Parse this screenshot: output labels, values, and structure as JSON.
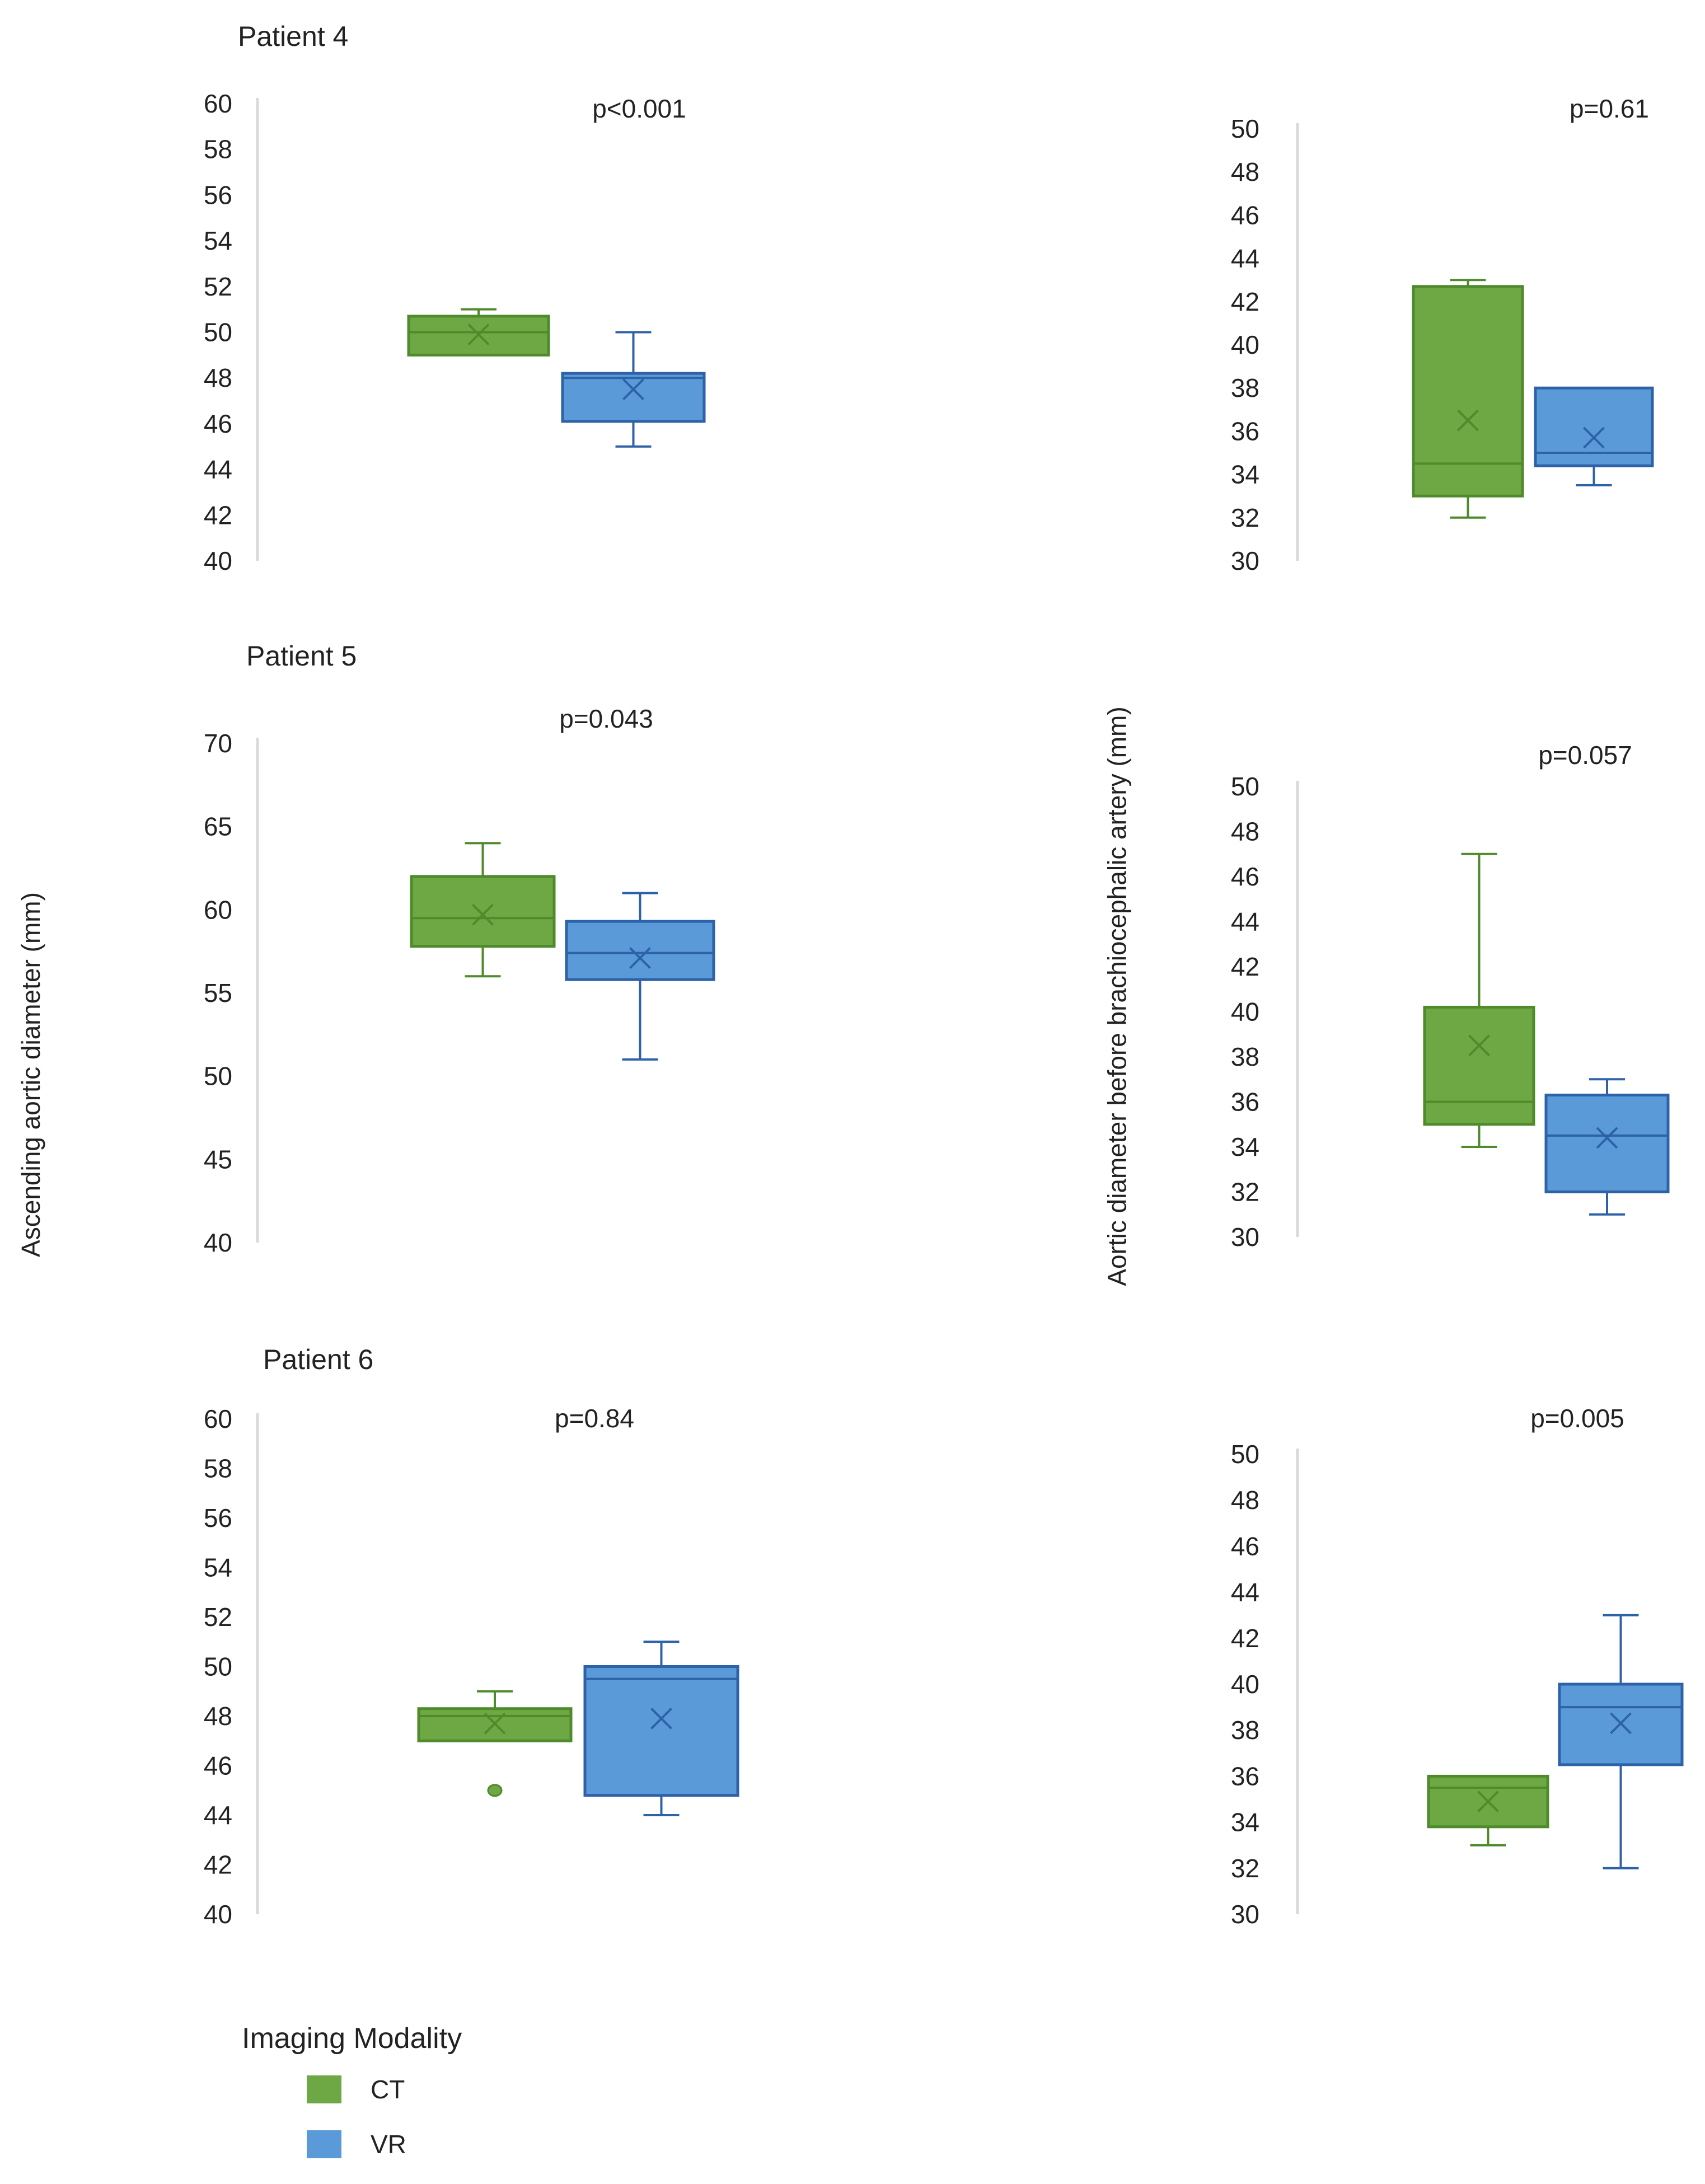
{
  "colors": {
    "ct": "#6ea844",
    "ct_dark": "#4f8a2b",
    "vr": "#5a9ad8",
    "vr_dark": "#2e62a8",
    "axis": "#d9d9d9",
    "text": "#222222"
  },
  "patients": {
    "p4": "Patient 4",
    "p5": "Patient 5",
    "p6": "Patient 6"
  },
  "y_labels": {
    "left": "Ascending aortic diameter (mm)",
    "right": "Aortic diameter before brachiocephalic artery (mm)"
  },
  "legend": {
    "title": "Imaging Modality",
    "items": [
      {
        "label": "CT",
        "color": "#6ea844"
      },
      {
        "label": "VR",
        "color": "#5a9ad8"
      }
    ]
  },
  "chart_data": [
    {
      "type": "box",
      "panel": "patient4-ascending",
      "patient": "Patient 4",
      "ylabel": "Ascending aortic diameter (mm)",
      "annotation": "p<0.001",
      "ylim": [
        40,
        60
      ],
      "yticks": [
        40,
        42,
        44,
        46,
        48,
        50,
        52,
        54,
        56,
        58,
        60
      ],
      "series": [
        {
          "name": "CT",
          "min": 49,
          "q1": 49,
          "median": 50,
          "q3": 50.7,
          "max": 51,
          "mean": 49.9,
          "outliers": []
        },
        {
          "name": "VR",
          "min": 45,
          "q1": 46.1,
          "median": 48,
          "q3": 48.2,
          "max": 50,
          "mean": 47.5,
          "outliers": []
        }
      ]
    },
    {
      "type": "box",
      "panel": "patient4-brachiocephalic",
      "patient": "Patient 4",
      "ylabel": "Aortic diameter before brachiocephalic artery (mm)",
      "annotation": "p=0.61",
      "ylim": [
        30,
        50
      ],
      "yticks": [
        30,
        32,
        34,
        36,
        38,
        40,
        42,
        44,
        46,
        48,
        50
      ],
      "series": [
        {
          "name": "CT",
          "min": 32,
          "q1": 33,
          "median": 34.5,
          "q3": 42.7,
          "max": 43,
          "mean": 36.5,
          "outliers": []
        },
        {
          "name": "VR",
          "min": 33.5,
          "q1": 34.4,
          "median": 35,
          "q3": 38,
          "max": 38,
          "mean": 35.7,
          "outliers": []
        }
      ]
    },
    {
      "type": "box",
      "panel": "patient5-ascending",
      "patient": "Patient 5",
      "ylabel": "Ascending aortic diameter (mm)",
      "annotation": "p=0.043",
      "ylim": [
        40,
        70
      ],
      "yticks": [
        40,
        45,
        50,
        55,
        60,
        65,
        70
      ],
      "series": [
        {
          "name": "CT",
          "min": 56,
          "q1": 57.8,
          "median": 59.5,
          "q3": 62,
          "max": 64,
          "mean": 59.7,
          "outliers": []
        },
        {
          "name": "VR",
          "min": 51,
          "q1": 55.8,
          "median": 57.4,
          "q3": 59.3,
          "max": 61,
          "mean": 57.1,
          "outliers": []
        }
      ]
    },
    {
      "type": "box",
      "panel": "patient5-brachiocephalic",
      "patient": "Patient 5",
      "ylabel": "Aortic diameter before brachiocephalic artery (mm)",
      "annotation": "p=0.057",
      "ylim": [
        30,
        50
      ],
      "yticks": [
        30,
        32,
        34,
        36,
        38,
        40,
        42,
        44,
        46,
        48,
        50
      ],
      "series": [
        {
          "name": "CT",
          "min": 34,
          "q1": 35,
          "median": 36,
          "q3": 40.2,
          "max": 47,
          "mean": 38.5,
          "outliers": []
        },
        {
          "name": "VR",
          "min": 31,
          "q1": 32,
          "median": 34.5,
          "q3": 36.3,
          "max": 37,
          "mean": 34.4,
          "outliers": []
        }
      ]
    },
    {
      "type": "box",
      "panel": "patient6-ascending",
      "patient": "Patient 6",
      "ylabel": "Ascending aortic diameter (mm)",
      "annotation": "p=0.84",
      "ylim": [
        40,
        60
      ],
      "yticks": [
        40,
        42,
        44,
        46,
        48,
        50,
        52,
        54,
        56,
        58,
        60
      ],
      "series": [
        {
          "name": "CT",
          "min": 47,
          "q1": 47,
          "median": 48,
          "q3": 48.3,
          "max": 49,
          "mean": 47.7,
          "outliers": [
            45
          ]
        },
        {
          "name": "VR",
          "min": 44,
          "q1": 44.8,
          "median": 49.5,
          "q3": 50,
          "max": 51,
          "mean": 47.9,
          "outliers": []
        }
      ]
    },
    {
      "type": "box",
      "panel": "patient6-brachiocephalic",
      "patient": "Patient 6",
      "ylabel": "Aortic diameter before brachiocephalic artery (mm)",
      "annotation": "p=0.005",
      "ylim": [
        30,
        50
      ],
      "yticks": [
        30,
        32,
        34,
        36,
        38,
        40,
        42,
        44,
        46,
        48,
        50
      ],
      "series": [
        {
          "name": "CT",
          "min": 33,
          "q1": 33.8,
          "median": 35.5,
          "q3": 36,
          "max": 36,
          "mean": 34.9,
          "outliers": []
        },
        {
          "name": "VR",
          "min": 32,
          "q1": 36.5,
          "median": 39,
          "q3": 40,
          "max": 43,
          "mean": 38.3,
          "outliers": []
        }
      ]
    }
  ]
}
